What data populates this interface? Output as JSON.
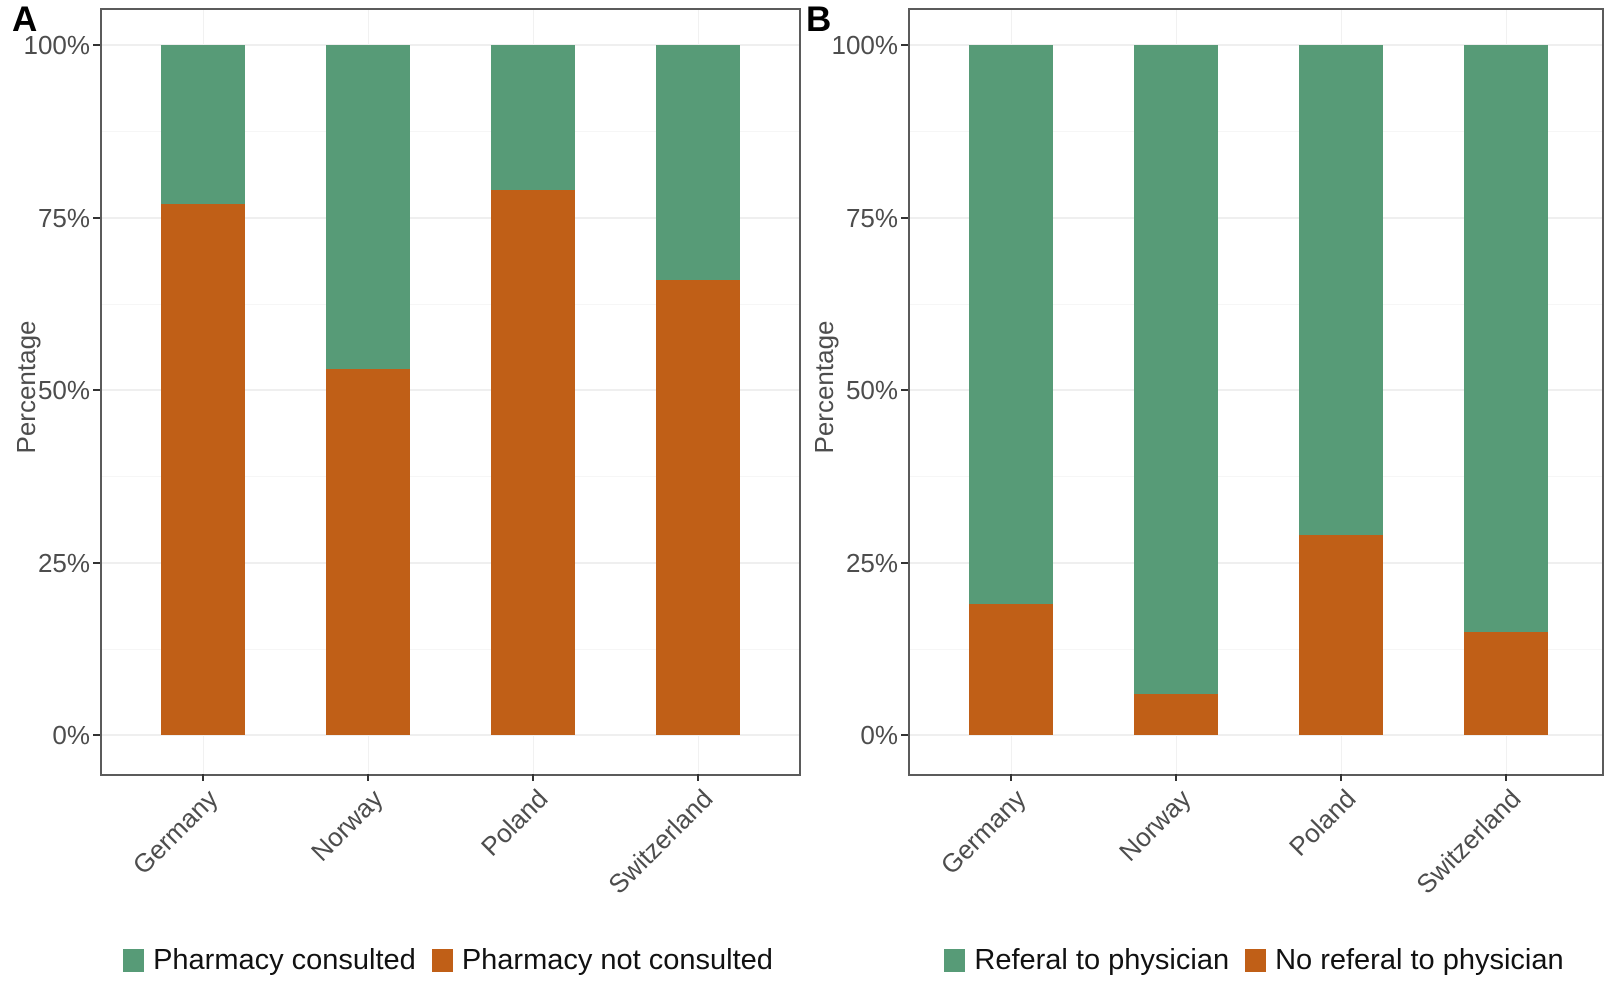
{
  "figure_background": "#ffffff",
  "accent_colors": {
    "green": "#579B77",
    "orange": "#C05F17"
  },
  "chart_data": [
    {
      "panel_label": "A",
      "type": "bar",
      "stacked": true,
      "orientation": "vertical",
      "categories": [
        "Germany",
        "Norway",
        "Poland",
        "Switzerland"
      ],
      "series": [
        {
          "name": "Pharmacy consulted",
          "color": "#579B77",
          "values": [
            23,
            47,
            21,
            34
          ]
        },
        {
          "name": "Pharmacy not consulted",
          "color": "#C05F17",
          "values": [
            77,
            53,
            79,
            66
          ]
        }
      ],
      "stack_bottom_series_index": 1,
      "title": "",
      "xlabel": "",
      "ylabel": "Percentage",
      "ylim": [
        0,
        100
      ],
      "yticks": [
        {
          "value": 0,
          "label": "0%"
        },
        {
          "value": 25,
          "label": "25%"
        },
        {
          "value": 50,
          "label": "50%"
        },
        {
          "value": 75,
          "label": "75%"
        },
        {
          "value": 100,
          "label": "100%"
        }
      ],
      "minor_gridlines": [
        12.5,
        37.5,
        62.5,
        87.5
      ],
      "grid": "on-faint",
      "x_tick_label_angle": 45,
      "legend_position": "bottom"
    },
    {
      "panel_label": "B",
      "type": "bar",
      "stacked": true,
      "orientation": "vertical",
      "categories": [
        "Germany",
        "Norway",
        "Poland",
        "Switzerland"
      ],
      "series": [
        {
          "name": "Referal to physician",
          "color": "#579B77",
          "values": [
            81,
            94,
            71,
            85
          ]
        },
        {
          "name": "No referal to physician",
          "color": "#C05F17",
          "values": [
            19,
            6,
            29,
            15
          ]
        }
      ],
      "stack_bottom_series_index": 1,
      "title": "",
      "xlabel": "",
      "ylabel": "Percentage",
      "ylim": [
        0,
        100
      ],
      "yticks": [
        {
          "value": 0,
          "label": "0%"
        },
        {
          "value": 25,
          "label": "25%"
        },
        {
          "value": 50,
          "label": "50%"
        },
        {
          "value": 75,
          "label": "75%"
        },
        {
          "value": 100,
          "label": "100%"
        }
      ],
      "minor_gridlines": [
        12.5,
        37.5,
        62.5,
        87.5
      ],
      "grid": "on-faint",
      "x_tick_label_angle": 45,
      "legend_position": "bottom"
    }
  ]
}
